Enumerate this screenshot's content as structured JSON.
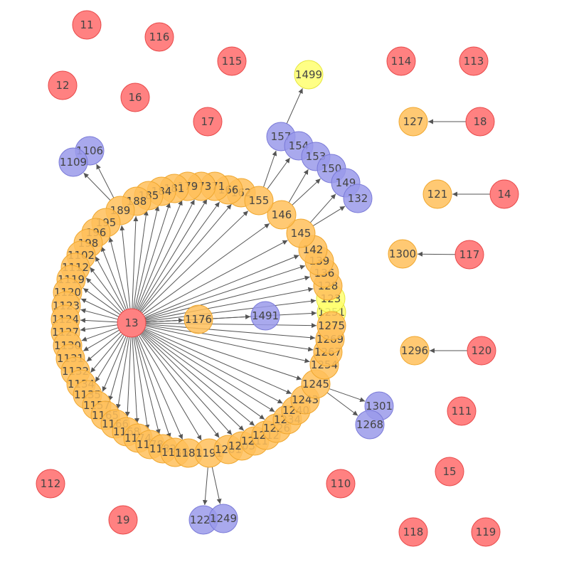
{
  "colors": {
    "red": "#ff6b6b",
    "red_stroke": "#e84a4a",
    "orange": "#ffc05a",
    "orange_stroke": "#f0a830",
    "purple": "#9a9aea",
    "purple_stroke": "#7b7bd8",
    "yellow": "#ffff70",
    "yellow_stroke": "#e6e640",
    "edge": "#555555"
  },
  "nodes": [
    {
      "id": "11",
      "color": "red"
    },
    {
      "id": "116",
      "color": "red"
    },
    {
      "id": "115",
      "color": "red"
    },
    {
      "id": "114",
      "color": "red"
    },
    {
      "id": "113",
      "color": "red"
    },
    {
      "id": "12",
      "color": "red"
    },
    {
      "id": "16",
      "color": "red"
    },
    {
      "id": "17",
      "color": "red"
    },
    {
      "id": "18",
      "color": "red"
    },
    {
      "id": "14",
      "color": "red"
    },
    {
      "id": "117",
      "color": "red"
    },
    {
      "id": "120",
      "color": "red"
    },
    {
      "id": "111",
      "color": "red"
    },
    {
      "id": "15",
      "color": "red"
    },
    {
      "id": "110",
      "color": "red"
    },
    {
      "id": "112",
      "color": "red"
    },
    {
      "id": "19",
      "color": "red"
    },
    {
      "id": "118",
      "color": "red"
    },
    {
      "id": "119",
      "color": "red"
    },
    {
      "id": "13",
      "color": "red"
    },
    {
      "id": "1499",
      "color": "yellow"
    },
    {
      "id": "1251",
      "color": "yellow"
    },
    {
      "id": "123",
      "color": "yellow"
    },
    {
      "id": "127",
      "color": "orange"
    },
    {
      "id": "121",
      "color": "orange"
    },
    {
      "id": "1300",
      "color": "orange"
    },
    {
      "id": "1296",
      "color": "orange"
    },
    {
      "id": "1176",
      "color": "orange"
    },
    {
      "id": "1491",
      "color": "purple"
    },
    {
      "id": "157",
      "color": "purple"
    },
    {
      "id": "154",
      "color": "purple"
    },
    {
      "id": "153",
      "color": "purple"
    },
    {
      "id": "150",
      "color": "purple"
    },
    {
      "id": "149",
      "color": "purple"
    },
    {
      "id": "132",
      "color": "purple"
    },
    {
      "id": "1106",
      "color": "purple"
    },
    {
      "id": "1109",
      "color": "purple"
    },
    {
      "id": "1301",
      "color": "purple"
    },
    {
      "id": "1268",
      "color": "purple"
    },
    {
      "id": "1224",
      "color": "purple"
    },
    {
      "id": "1249",
      "color": "purple"
    },
    {
      "id": "162",
      "color": "orange"
    },
    {
      "id": "166",
      "color": "orange"
    },
    {
      "id": "171",
      "color": "orange"
    },
    {
      "id": "173",
      "color": "orange"
    },
    {
      "id": "179",
      "color": "orange"
    },
    {
      "id": "181",
      "color": "orange"
    },
    {
      "id": "184",
      "color": "orange"
    },
    {
      "id": "185",
      "color": "orange"
    },
    {
      "id": "188",
      "color": "orange"
    },
    {
      "id": "189",
      "color": "orange"
    },
    {
      "id": "195",
      "color": "orange"
    },
    {
      "id": "196",
      "color": "orange"
    },
    {
      "id": "198",
      "color": "orange"
    },
    {
      "id": "1102",
      "color": "orange"
    },
    {
      "id": "1112",
      "color": "orange"
    },
    {
      "id": "1119",
      "color": "orange"
    },
    {
      "id": "1120",
      "color": "orange"
    },
    {
      "id": "1123",
      "color": "orange"
    },
    {
      "id": "1124",
      "color": "orange"
    },
    {
      "id": "1127",
      "color": "orange"
    },
    {
      "id": "1130",
      "color": "orange"
    },
    {
      "id": "1131",
      "color": "orange"
    },
    {
      "id": "1132",
      "color": "orange"
    },
    {
      "id": "1134",
      "color": "orange"
    },
    {
      "id": "1135",
      "color": "orange"
    },
    {
      "id": "1157",
      "color": "orange"
    },
    {
      "id": "1165",
      "color": "orange"
    },
    {
      "id": "1166",
      "color": "orange"
    },
    {
      "id": "1168",
      "color": "orange"
    },
    {
      "id": "1174",
      "color": "orange"
    },
    {
      "id": "1178",
      "color": "orange"
    },
    {
      "id": "1182",
      "color": "orange"
    },
    {
      "id": "1186",
      "color": "orange"
    },
    {
      "id": "1188",
      "color": "orange"
    },
    {
      "id": "1191",
      "color": "orange"
    },
    {
      "id": "1201",
      "color": "orange"
    },
    {
      "id": "1203",
      "color": "orange"
    },
    {
      "id": "1211",
      "color": "orange"
    },
    {
      "id": "1212",
      "color": "orange"
    },
    {
      "id": "1226",
      "color": "orange"
    },
    {
      "id": "1234",
      "color": "orange"
    },
    {
      "id": "1240",
      "color": "orange"
    },
    {
      "id": "1243",
      "color": "orange"
    },
    {
      "id": "1245",
      "color": "orange"
    },
    {
      "id": "1254",
      "color": "orange"
    },
    {
      "id": "1267",
      "color": "orange"
    },
    {
      "id": "1269",
      "color": "orange"
    },
    {
      "id": "1275",
      "color": "orange"
    },
    {
      "id": "128",
      "color": "orange"
    },
    {
      "id": "136",
      "color": "orange"
    },
    {
      "id": "139",
      "color": "orange"
    },
    {
      "id": "142",
      "color": "orange"
    },
    {
      "id": "145",
      "color": "orange"
    },
    {
      "id": "146",
      "color": "orange"
    },
    {
      "id": "155",
      "color": "orange"
    }
  ],
  "edges": [
    [
      "18",
      "127"
    ],
    [
      "14",
      "121"
    ],
    [
      "117",
      "1300"
    ],
    [
      "120",
      "1296"
    ],
    [
      "13",
      "1176"
    ],
    [
      "13",
      "1491"
    ],
    [
      "13",
      "1251"
    ],
    [
      "13",
      "123"
    ],
    [
      "13",
      "162"
    ],
    [
      "13",
      "166"
    ],
    [
      "13",
      "171"
    ],
    [
      "13",
      "173"
    ],
    [
      "13",
      "179"
    ],
    [
      "13",
      "181"
    ],
    [
      "13",
      "184"
    ],
    [
      "13",
      "185"
    ],
    [
      "13",
      "188"
    ],
    [
      "13",
      "189"
    ],
    [
      "13",
      "195"
    ],
    [
      "13",
      "196"
    ],
    [
      "13",
      "198"
    ],
    [
      "13",
      "1102"
    ],
    [
      "13",
      "1112"
    ],
    [
      "13",
      "1119"
    ],
    [
      "13",
      "1120"
    ],
    [
      "13",
      "1123"
    ],
    [
      "13",
      "1124"
    ],
    [
      "13",
      "1127"
    ],
    [
      "13",
      "1130"
    ],
    [
      "13",
      "1131"
    ],
    [
      "13",
      "1132"
    ],
    [
      "13",
      "1134"
    ],
    [
      "13",
      "1135"
    ],
    [
      "13",
      "1157"
    ],
    [
      "13",
      "1165"
    ],
    [
      "13",
      "1166"
    ],
    [
      "13",
      "1168"
    ],
    [
      "13",
      "1174"
    ],
    [
      "13",
      "1178"
    ],
    [
      "13",
      "1182"
    ],
    [
      "13",
      "1186"
    ],
    [
      "13",
      "1188"
    ],
    [
      "13",
      "1191"
    ],
    [
      "13",
      "1201"
    ],
    [
      "13",
      "1203"
    ],
    [
      "13",
      "1211"
    ],
    [
      "13",
      "1212"
    ],
    [
      "13",
      "1226"
    ],
    [
      "13",
      "1234"
    ],
    [
      "13",
      "1240"
    ],
    [
      "13",
      "1243"
    ],
    [
      "13",
      "1245"
    ],
    [
      "13",
      "1254"
    ],
    [
      "13",
      "1267"
    ],
    [
      "13",
      "1269"
    ],
    [
      "13",
      "1275"
    ],
    [
      "13",
      "128"
    ],
    [
      "13",
      "136"
    ],
    [
      "13",
      "139"
    ],
    [
      "13",
      "142"
    ],
    [
      "13",
      "145"
    ],
    [
      "13",
      "146"
    ],
    [
      "13",
      "155"
    ],
    [
      "189",
      "1106"
    ],
    [
      "189",
      "1109"
    ],
    [
      "155",
      "157"
    ],
    [
      "155",
      "154"
    ],
    [
      "157",
      "1499"
    ],
    [
      "146",
      "153"
    ],
    [
      "146",
      "150"
    ],
    [
      "145",
      "149"
    ],
    [
      "145",
      "132"
    ],
    [
      "1245",
      "1301"
    ],
    [
      "1245",
      "1268"
    ],
    [
      "1191",
      "1224"
    ],
    [
      "1191",
      "1249"
    ]
  ]
}
